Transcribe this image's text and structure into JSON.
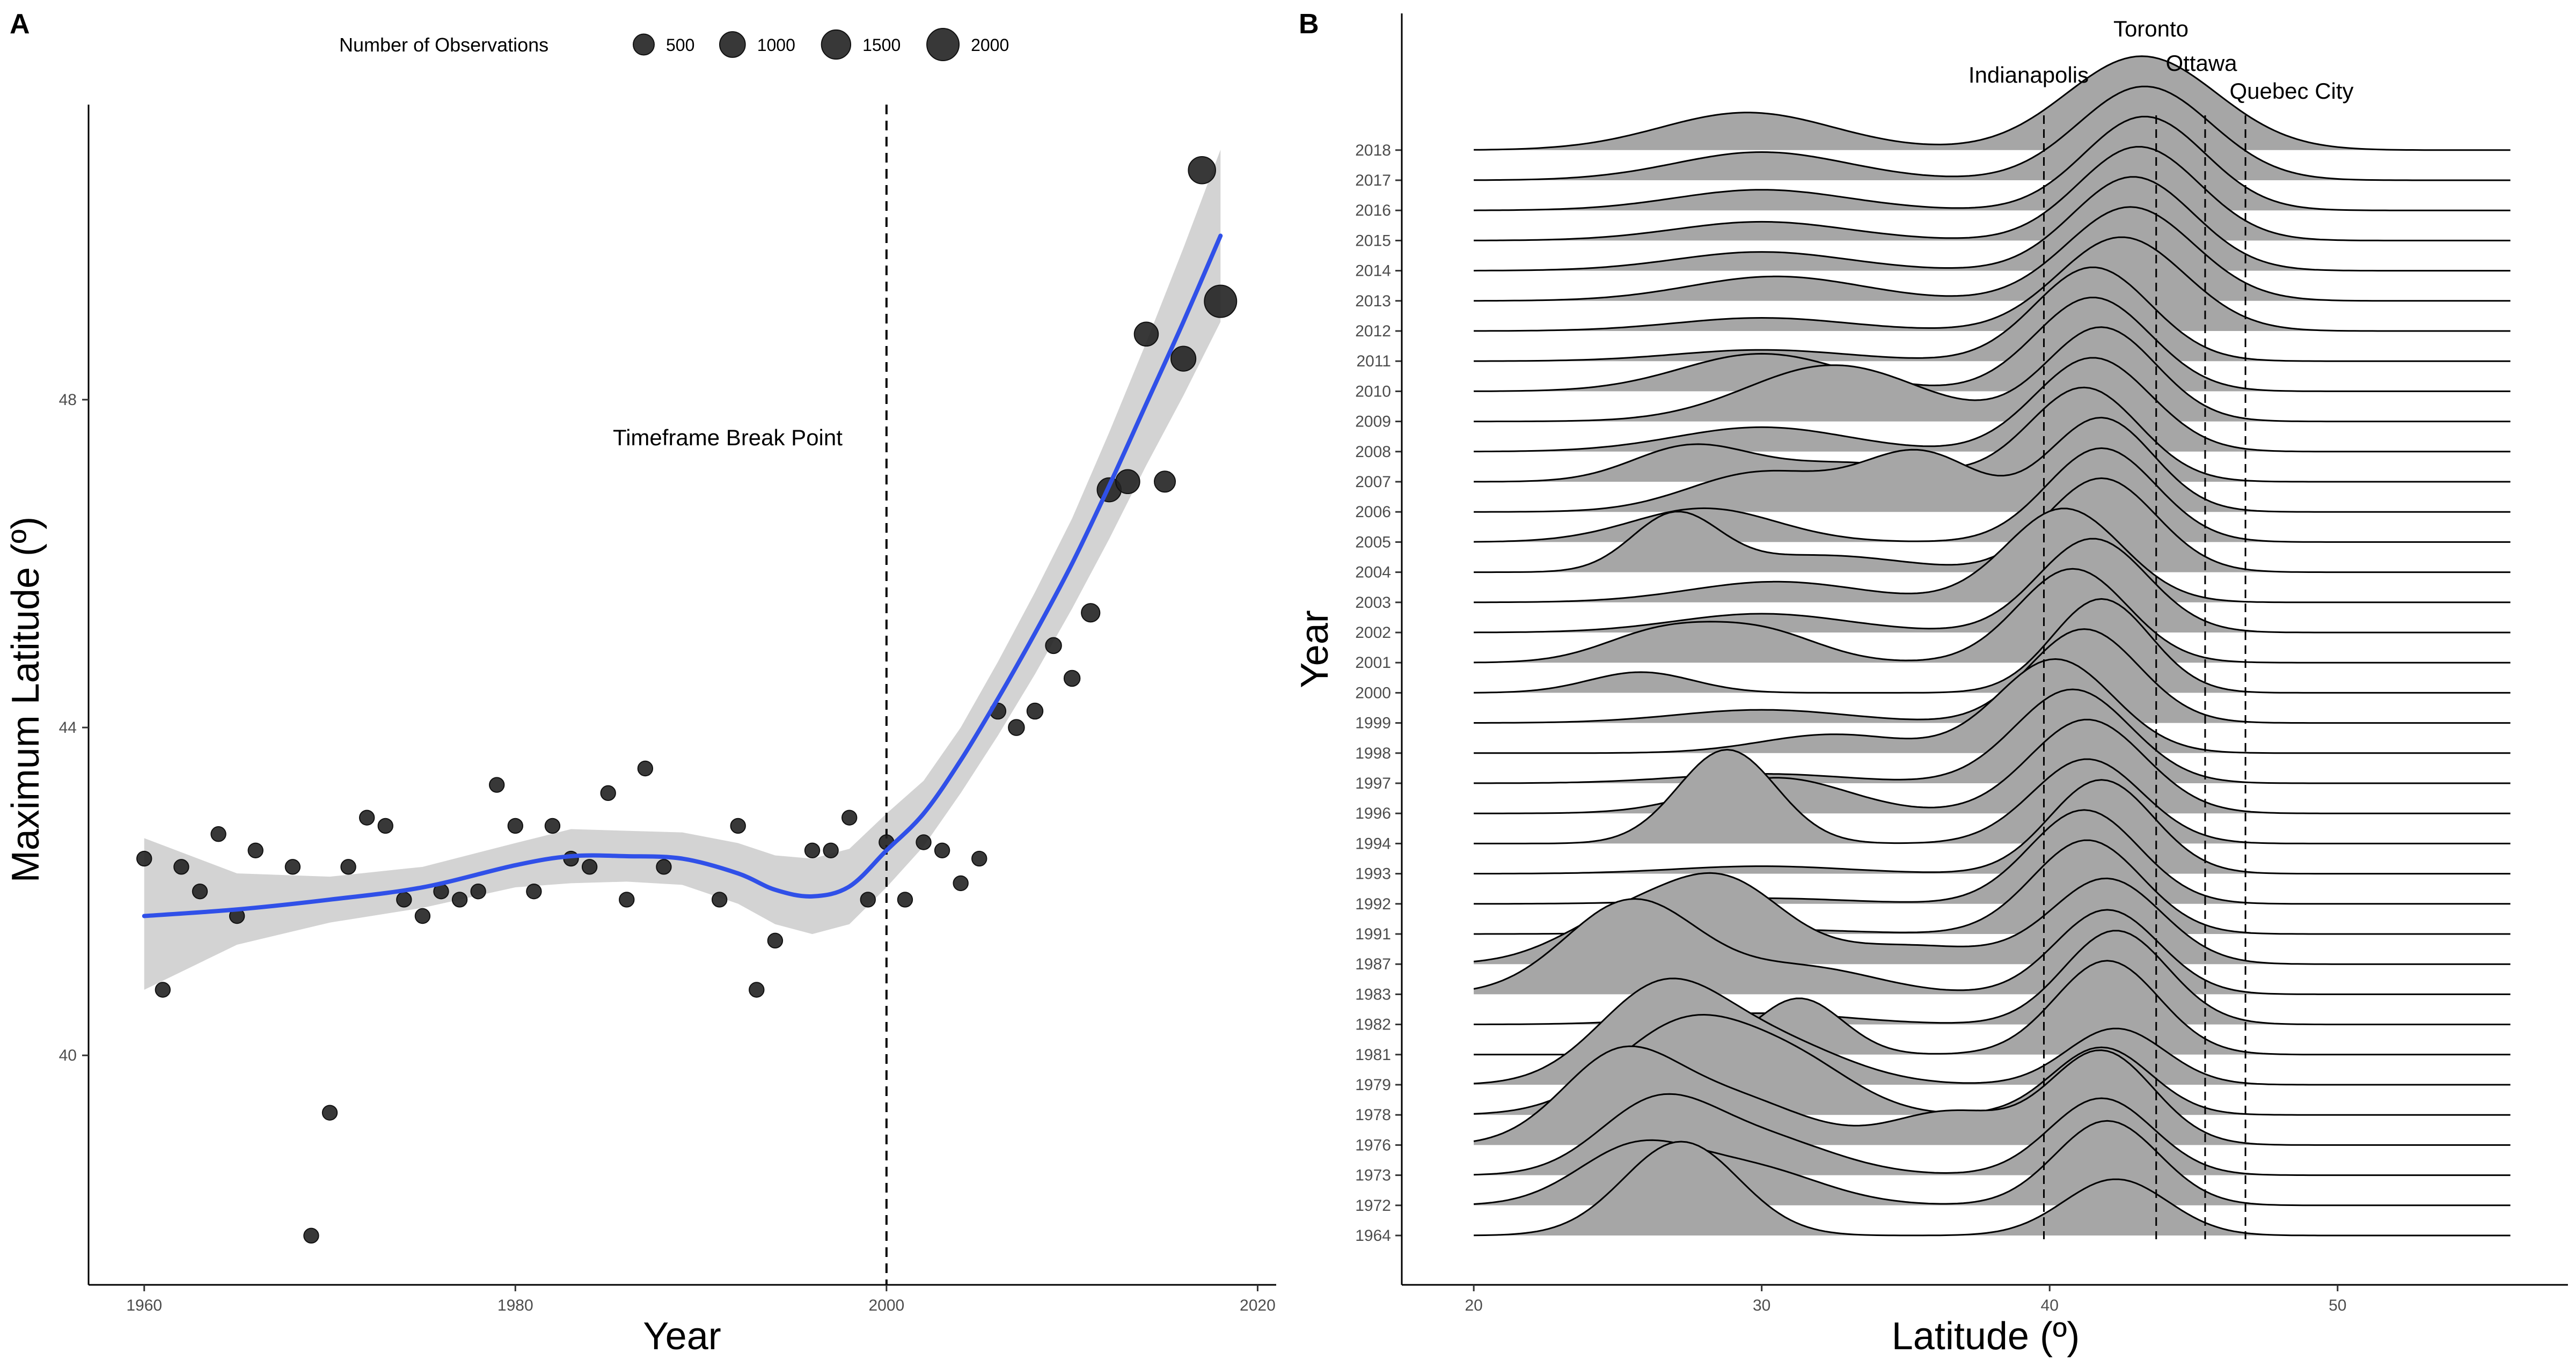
{
  "panelA": {
    "letter": "A",
    "legend_title": "Number of Observations",
    "legend_sizes": [
      500,
      1000,
      1500,
      2000
    ],
    "xlabel": "Year",
    "ylabel": "Maximum Latitude (º)",
    "annotation": "Timeframe Break Point",
    "break_year": 2000,
    "xlim": [
      1957,
      2021
    ],
    "ylim": [
      37.2,
      51.6
    ],
    "xticks": [
      1960,
      1980,
      2000,
      2020
    ],
    "yticks": [
      40,
      44,
      48
    ]
  },
  "panelB": {
    "letter": "B",
    "xlabel": "Latitude (º)",
    "ylabel": "Year",
    "xlim": [
      17.5,
      58
    ],
    "xticks": [
      20,
      30,
      40,
      50
    ],
    "cities": [
      {
        "name": "Indianapolis",
        "lat": 39.8
      },
      {
        "name": "Toronto",
        "lat": 43.7
      },
      {
        "name": "Ottawa",
        "lat": 45.4
      },
      {
        "name": "Quebec City",
        "lat": 46.8
      }
    ]
  },
  "colors": {
    "smooth_line": "#3050e8",
    "ribbon": "#d3d3d3",
    "points": "#222222",
    "ridge_fill": "#a6a6a6"
  },
  "chart_data": [
    {
      "type": "scatter",
      "title": "",
      "xlabel": "Year",
      "ylabel": "Maximum Latitude (º)",
      "xlim": [
        1957,
        2021
      ],
      "ylim": [
        37.2,
        51.6
      ],
      "size_legend": "Number of Observations",
      "points": [
        {
          "x": 1960,
          "y": 42.4,
          "n": 100
        },
        {
          "x": 1961,
          "y": 40.8,
          "n": 100
        },
        {
          "x": 1962,
          "y": 42.3,
          "n": 100
        },
        {
          "x": 1963,
          "y": 42.0,
          "n": 100
        },
        {
          "x": 1964,
          "y": 42.7,
          "n": 100
        },
        {
          "x": 1965,
          "y": 41.7,
          "n": 100
        },
        {
          "x": 1966,
          "y": 42.5,
          "n": 100
        },
        {
          "x": 1968,
          "y": 42.3,
          "n": 100
        },
        {
          "x": 1969,
          "y": 37.8,
          "n": 100
        },
        {
          "x": 1970,
          "y": 39.3,
          "n": 100
        },
        {
          "x": 1971,
          "y": 42.3,
          "n": 100
        },
        {
          "x": 1972,
          "y": 42.9,
          "n": 100
        },
        {
          "x": 1973,
          "y": 42.8,
          "n": 100
        },
        {
          "x": 1974,
          "y": 41.9,
          "n": 100
        },
        {
          "x": 1975,
          "y": 41.7,
          "n": 100
        },
        {
          "x": 1976,
          "y": 42.0,
          "n": 100
        },
        {
          "x": 1977,
          "y": 41.9,
          "n": 100
        },
        {
          "x": 1978,
          "y": 42.0,
          "n": 100
        },
        {
          "x": 1979,
          "y": 43.3,
          "n": 100
        },
        {
          "x": 1980,
          "y": 42.8,
          "n": 100
        },
        {
          "x": 1981,
          "y": 42.0,
          "n": 100
        },
        {
          "x": 1982,
          "y": 42.8,
          "n": 100
        },
        {
          "x": 1983,
          "y": 42.4,
          "n": 100
        },
        {
          "x": 1984,
          "y": 42.3,
          "n": 100
        },
        {
          "x": 1985,
          "y": 43.2,
          "n": 100
        },
        {
          "x": 1986,
          "y": 41.9,
          "n": 100
        },
        {
          "x": 1987,
          "y": 43.5,
          "n": 100
        },
        {
          "x": 1988,
          "y": 42.3,
          "n": 100
        },
        {
          "x": 1991,
          "y": 41.9,
          "n": 100
        },
        {
          "x": 1992,
          "y": 42.8,
          "n": 100
        },
        {
          "x": 1993,
          "y": 40.8,
          "n": 100
        },
        {
          "x": 1994,
          "y": 41.4,
          "n": 100
        },
        {
          "x": 1996,
          "y": 42.5,
          "n": 100
        },
        {
          "x": 1997,
          "y": 42.5,
          "n": 100
        },
        {
          "x": 1998,
          "y": 42.9,
          "n": 100
        },
        {
          "x": 1999,
          "y": 41.9,
          "n": 100
        },
        {
          "x": 2000,
          "y": 42.6,
          "n": 100
        },
        {
          "x": 2001,
          "y": 41.9,
          "n": 100
        },
        {
          "x": 2002,
          "y": 42.6,
          "n": 100
        },
        {
          "x": 2003,
          "y": 42.5,
          "n": 100
        },
        {
          "x": 2004,
          "y": 42.1,
          "n": 100
        },
        {
          "x": 2005,
          "y": 42.4,
          "n": 100
        },
        {
          "x": 2006,
          "y": 44.2,
          "n": 150
        },
        {
          "x": 2007,
          "y": 44.0,
          "n": 150
        },
        {
          "x": 2008,
          "y": 44.2,
          "n": 150
        },
        {
          "x": 2009,
          "y": 45.0,
          "n": 150
        },
        {
          "x": 2010,
          "y": 44.6,
          "n": 150
        },
        {
          "x": 2011,
          "y": 45.4,
          "n": 300
        },
        {
          "x": 2012,
          "y": 46.9,
          "n": 800
        },
        {
          "x": 2013,
          "y": 47.0,
          "n": 800
        },
        {
          "x": 2014,
          "y": 48.8,
          "n": 800
        },
        {
          "x": 2015,
          "y": 47.0,
          "n": 500
        },
        {
          "x": 2016,
          "y": 48.5,
          "n": 900
        },
        {
          "x": 2017,
          "y": 50.8,
          "n": 1200
        },
        {
          "x": 2018,
          "y": 49.2,
          "n": 2000
        }
      ],
      "smooth": {
        "x": [
          1960,
          1965,
          1970,
          1975,
          1980,
          1983,
          1986,
          1989,
          1992,
          1994,
          1996,
          1998,
          2000,
          2002,
          2004,
          2006,
          2008,
          2010,
          2012,
          2014,
          2016,
          2018
        ],
        "y": [
          41.7,
          41.78,
          41.9,
          42.05,
          42.32,
          42.43,
          42.43,
          42.4,
          42.22,
          42.02,
          41.94,
          42.06,
          42.5,
          42.95,
          43.6,
          44.35,
          45.15,
          46.0,
          46.95,
          47.95,
          48.95,
          50.0
        ],
        "lower": [
          40.8,
          41.35,
          41.62,
          41.8,
          42.05,
          42.1,
          42.12,
          42.08,
          41.85,
          41.6,
          41.48,
          41.6,
          42.05,
          42.55,
          43.2,
          43.9,
          44.65,
          45.45,
          46.3,
          47.2,
          48.05,
          48.95
        ],
        "upper": [
          42.65,
          42.22,
          42.18,
          42.3,
          42.59,
          42.76,
          42.74,
          42.72,
          42.59,
          42.44,
          42.4,
          42.52,
          42.95,
          43.35,
          44.0,
          44.8,
          45.65,
          46.55,
          47.6,
          48.7,
          49.85,
          51.05
        ]
      }
    },
    {
      "type": "area",
      "title": "",
      "xlabel": "Latitude (º)",
      "ylabel": "Year",
      "xlim": [
        17.5,
        58
      ],
      "x_range": [
        20,
        56
      ],
      "note": "ridgeline density per year; peaks listed as [center_latitude, sd, relative_height]",
      "years": [
        {
          "year": "2018",
          "peaks": [
            [
              29.5,
              3.0,
              0.4
            ],
            [
              43.2,
              2.6,
              1.0
            ]
          ]
        },
        {
          "year": "2017",
          "peaks": [
            [
              30.0,
              3.0,
              0.3
            ],
            [
              43.3,
              2.3,
              1.0
            ]
          ]
        },
        {
          "year": "2016",
          "peaks": [
            [
              30.0,
              3.0,
              0.22
            ],
            [
              43.3,
              2.1,
              1.0
            ]
          ]
        },
        {
          "year": "2015",
          "peaks": [
            [
              30.0,
              3.0,
              0.2
            ],
            [
              43.1,
              2.1,
              1.0
            ]
          ]
        },
        {
          "year": "2014",
          "peaks": [
            [
              30.0,
              3.0,
              0.2
            ],
            [
              42.9,
              2.1,
              1.0
            ]
          ]
        },
        {
          "year": "2013",
          "peaks": [
            [
              30.5,
              3.0,
              0.26
            ],
            [
              42.8,
              2.2,
              1.0
            ]
          ]
        },
        {
          "year": "2012",
          "peaks": [
            [
              30.0,
              3.0,
              0.14
            ],
            [
              42.5,
              2.2,
              1.0
            ]
          ]
        },
        {
          "year": "2011",
          "peaks": [
            [
              30.0,
              3.0,
              0.12
            ],
            [
              41.5,
              2.0,
              1.0
            ]
          ]
        },
        {
          "year": "2010",
          "peaks": [
            [
              30.0,
              2.8,
              0.4
            ],
            [
              41.5,
              2.0,
              1.0
            ]
          ]
        },
        {
          "year": "2009",
          "peaks": [
            [
              32.5,
              3.0,
              0.6
            ],
            [
              41.8,
              1.9,
              1.0
            ]
          ]
        },
        {
          "year": "2008",
          "peaks": [
            [
              30.0,
              3.0,
              0.26
            ],
            [
              41.5,
              2.0,
              1.0
            ]
          ]
        },
        {
          "year": "2007",
          "peaks": [
            [
              27.5,
              2.0,
              0.36
            ],
            [
              33.0,
              3.0,
              0.2
            ],
            [
              41.2,
              1.9,
              1.0
            ]
          ]
        },
        {
          "year": "2006",
          "peaks": [
            [
              30.0,
              2.5,
              0.42
            ],
            [
              35.5,
              2.0,
              0.62
            ],
            [
              41.8,
              1.8,
              1.0
            ]
          ]
        },
        {
          "year": "2005",
          "peaks": [
            [
              28.0,
              2.5,
              0.36
            ],
            [
              41.8,
              1.9,
              1.0
            ]
          ]
        },
        {
          "year": "2004",
          "peaks": [
            [
              27.0,
              1.5,
              0.6
            ],
            [
              32.0,
              3.0,
              0.18
            ],
            [
              41.8,
              1.9,
              1.0
            ]
          ]
        },
        {
          "year": "2003",
          "peaks": [
            [
              30.5,
              3.0,
              0.22
            ],
            [
              40.5,
              2.0,
              1.0
            ]
          ]
        },
        {
          "year": "2002",
          "peaks": [
            [
              30.0,
              3.0,
              0.2
            ],
            [
              41.5,
              1.9,
              1.0
            ]
          ]
        },
        {
          "year": "2001",
          "peaks": [
            [
              26.5,
              2.0,
              0.32
            ],
            [
              30.0,
              2.0,
              0.32
            ],
            [
              40.8,
              1.9,
              1.0
            ]
          ]
        },
        {
          "year": "2000",
          "peaks": [
            [
              25.8,
              1.8,
              0.22
            ],
            [
              41.8,
              1.7,
              1.0
            ]
          ]
        },
        {
          "year": "1999",
          "peaks": [
            [
              30.0,
              3.0,
              0.14
            ],
            [
              41.2,
              1.9,
              1.0
            ]
          ]
        },
        {
          "year": "1998",
          "peaks": [
            [
              32.5,
              2.5,
              0.2
            ],
            [
              40.2,
              2.0,
              1.0
            ]
          ]
        },
        {
          "year": "1997",
          "peaks": [
            [
              30.0,
              3.0,
              0.1
            ],
            [
              40.8,
              2.0,
              1.0
            ]
          ]
        },
        {
          "year": "1996",
          "peaks": [
            [
              30.5,
              2.5,
              0.38
            ],
            [
              41.3,
              2.0,
              1.0
            ]
          ]
        },
        {
          "year": "1994",
          "peaks": [
            [
              28.8,
              1.7,
              1.0
            ],
            [
              41.3,
              1.9,
              0.9
            ]
          ]
        },
        {
          "year": "1993",
          "peaks": [
            [
              30.0,
              3.0,
              0.08
            ],
            [
              41.8,
              1.8,
              1.0
            ]
          ]
        },
        {
          "year": "1992",
          "peaks": [
            [
              30.0,
              3.0,
              0.06
            ],
            [
              41.2,
              1.9,
              1.0
            ]
          ]
        },
        {
          "year": "1991",
          "peaks": [
            [
              30.0,
              3.0,
              0.05
            ],
            [
              41.3,
              1.9,
              1.0
            ]
          ]
        },
        {
          "year": "1987",
          "peaks": [
            [
              25.3,
              2.2,
              0.5
            ],
            [
              28.8,
              2.0,
              0.78
            ],
            [
              35.0,
              3.0,
              0.2
            ],
            [
              42.0,
              1.9,
              0.9
            ]
          ]
        },
        {
          "year": "1983",
          "peaks": [
            [
              25.5,
              2.3,
              1.0
            ],
            [
              31.5,
              2.5,
              0.28
            ],
            [
              42.0,
              1.8,
              0.9
            ]
          ]
        },
        {
          "year": "1982",
          "peaks": [
            [
              30.0,
              3.0,
              0.12
            ],
            [
              42.3,
              1.8,
              1.0
            ]
          ]
        },
        {
          "year": "1981",
          "peaks": [
            [
              31.3,
              1.5,
              0.6
            ],
            [
              42.0,
              1.8,
              1.0
            ]
          ]
        },
        {
          "year": "1979",
          "peaks": [
            [
              26.5,
              2.2,
              1.0
            ],
            [
              30.5,
              2.5,
              0.42
            ],
            [
              42.3,
              1.7,
              0.6
            ]
          ]
        },
        {
          "year": "1978",
          "peaks": [
            [
              27.5,
              2.5,
              1.0
            ],
            [
              31.5,
              2.0,
              0.4
            ],
            [
              41.8,
              1.7,
              0.72
            ]
          ]
        },
        {
          "year": "1976",
          "peaks": [
            [
              25.0,
              2.0,
              0.9
            ],
            [
              29.0,
              2.5,
              0.48
            ],
            [
              36.5,
              2.0,
              0.35
            ],
            [
              41.8,
              1.8,
              1.0
            ]
          ]
        },
        {
          "year": "1973",
          "peaks": [
            [
              26.3,
              2.0,
              0.72
            ],
            [
              30.0,
              2.5,
              0.38
            ],
            [
              41.8,
              1.8,
              0.82
            ]
          ]
        },
        {
          "year": "1972",
          "peaks": [
            [
              25.5,
              2.0,
              0.56
            ],
            [
              29.5,
              2.5,
              0.4
            ],
            [
              42.0,
              1.8,
              0.9
            ]
          ]
        },
        {
          "year": "1964",
          "peaks": [
            [
              27.2,
              2.0,
              1.0
            ],
            [
              42.3,
              1.8,
              0.6
            ]
          ]
        }
      ]
    }
  ]
}
